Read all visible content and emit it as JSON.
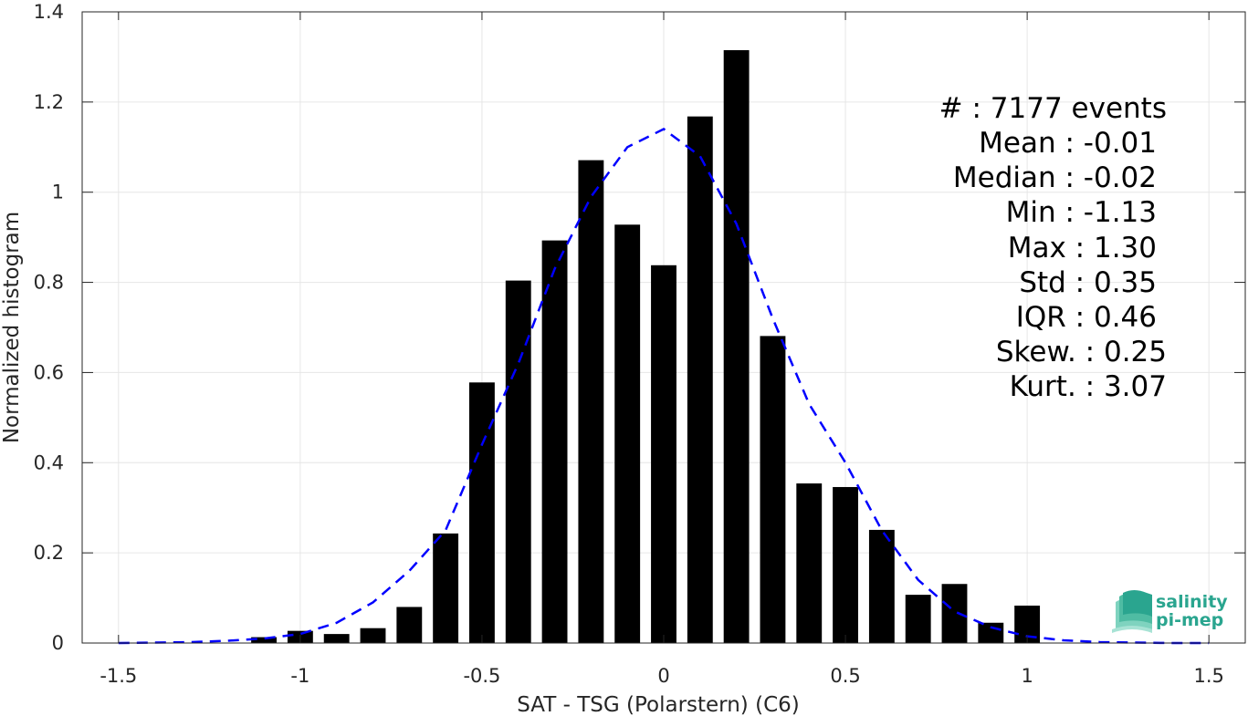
{
  "chart_data": {
    "type": "bar",
    "xlabel": "SAT - TSG (Polarstern) (C6)",
    "ylabel": "Normalized histogram",
    "xlim": [
      -1.6,
      1.6
    ],
    "ylim": [
      0,
      1.4
    ],
    "xticks": [
      -1.5,
      -1,
      -0.5,
      0,
      0.5,
      1,
      1.5
    ],
    "xtick_labels": [
      "-1.5",
      "-1",
      "-0.5",
      "0",
      "0.5",
      "1",
      "1.5"
    ],
    "yticks": [
      0,
      0.2,
      0.4,
      0.6,
      0.8,
      1,
      1.2,
      1.4
    ],
    "ytick_labels": [
      "0",
      "0.2",
      "0.4",
      "0.6",
      "0.8",
      "1",
      "1.2",
      "1.4"
    ],
    "grid": true,
    "bar_color": "#000000",
    "bars": {
      "x": [
        -1.1,
        -1.0,
        -0.9,
        -0.8,
        -0.7,
        -0.6,
        -0.5,
        -0.4,
        -0.3,
        -0.2,
        -0.1,
        0.0,
        0.1,
        0.2,
        0.3,
        0.4,
        0.5,
        0.6,
        0.7,
        0.8,
        0.9,
        1.0
      ],
      "values": [
        0.013,
        0.027,
        0.02,
        0.033,
        0.08,
        0.243,
        0.578,
        0.804,
        0.893,
        1.071,
        0.928,
        0.838,
        1.168,
        1.315,
        0.681,
        0.354,
        0.346,
        0.251,
        0.107,
        0.131,
        0.045,
        0.083
      ]
    },
    "fit": {
      "style": "dashed",
      "color": "#0000ff",
      "x": [
        -1.5,
        -1.4,
        -1.3,
        -1.2,
        -1.1,
        -1.0,
        -0.9,
        -0.8,
        -0.7,
        -0.6,
        -0.5,
        -0.4,
        -0.3,
        -0.2,
        -0.1,
        0.0,
        0.1,
        0.2,
        0.3,
        0.4,
        0.5,
        0.6,
        0.7,
        0.8,
        0.9,
        1.0,
        1.1,
        1.2,
        1.3,
        1.4,
        1.5
      ],
      "values": [
        0.0,
        0.001,
        0.002,
        0.005,
        0.01,
        0.02,
        0.045,
        0.09,
        0.16,
        0.25,
        0.44,
        0.62,
        0.83,
        0.99,
        1.1,
        1.14,
        1.08,
        0.93,
        0.72,
        0.53,
        0.4,
        0.25,
        0.14,
        0.07,
        0.035,
        0.015,
        0.006,
        0.002,
        0.001,
        0.0,
        0.0
      ]
    },
    "annotations": [
      "#  : 7177 events",
      "Mean : -0.01",
      "Median : -0.02",
      "Min : -1.13",
      "Max : 1.30",
      "Std : 0.35",
      "IQR : 0.46",
      "Skew. : 0.25",
      "Kurt. : 3.07"
    ]
  },
  "logo": {
    "line1": "salinity",
    "line2": "pi-mep",
    "color": "#2aa58f"
  }
}
